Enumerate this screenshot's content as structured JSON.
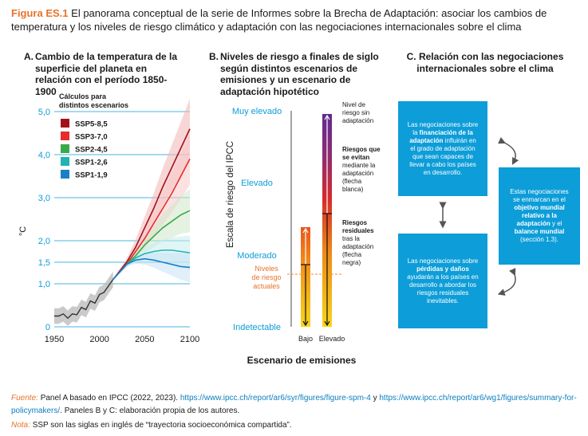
{
  "figure": {
    "label": "Figura ES.1",
    "title": "El panorama conceptual de la serie de Informes sobre la Brecha de Adaptación: asociar los cambios de temperatura y los niveles de riesgo climático y adaptación con las negociaciones internacionales sobre el clima"
  },
  "panel_a": {
    "title_letter": "A.",
    "title": "Cambio de la temperatura de la superficie del planeta en relación con el período 1850-1900",
    "legend_title": "Cálculos para distintos escenarios",
    "ylabel": "°C"
  },
  "panel_b": {
    "title_letter": "B.",
    "title": "Niveles de riesgo a finales de siglo según distintos escenarios de emisiones y un escenario de adaptación hipotético",
    "ylabel": "Escala de riesgo del IPCC",
    "xlabel": "Escenario de emisiones",
    "current_label": "Niveles de riesgo actuales",
    "annot_no_adapt": "Nivel de riesgo sin adaptación",
    "annot_avoided_bold": "Riesgos que se evitan",
    "annot_avoided_rest": "mediante la adaptación (flecha blanca)",
    "annot_residual_bold": "Riesgos residuales",
    "annot_residual_rest": "tras la adaptación (flecha negra)"
  },
  "panel_c": {
    "title_letter": "C.",
    "title": "Relación con las negociaciones internacionales sobre el clima",
    "box1": {
      "pre": "Las negociaciones sobre la ",
      "bold": "financiación de la adaptación",
      "post": " influirán en el grado de adaptación que sean capaces de llevar a cabo los países en desarrollo."
    },
    "box2": {
      "pre": "Estas negociaciones se enmarcan en el ",
      "bold": "objetivo mundial relativo a la adaptación",
      "mid": " y el ",
      "bold2": "balance mundial",
      "post": " (sección 1.3)."
    },
    "box3": {
      "pre": "Las negociaciones sobre ",
      "bold": "pérdidas y daños",
      "post": " ayudarán a los países en desarrollo a abordar los riesgos residuales inevitables."
    }
  },
  "footer": {
    "source_label": "Fuente:",
    "source_text": "Panel A basado en IPCC (2022, 2023).",
    "url1": "https://www.ipcc.ch/report/ar6/syr/figures/figure-spm-4",
    "and": "y",
    "url2": "https://www.ipcc.ch/report/ar6/wg1/figures/summary-for-policymakers/",
    "source_tail": ". Paneles B y C: elaboración propia de los autores.",
    "note_label": "Nota:",
    "note_text": "SSP son las siglas en inglés de “trayectoria socioeconómica compartida”."
  },
  "chart_data": [
    {
      "type": "line",
      "title": "Cambio de la temperatura de la superficie del planeta en relación con el período 1850-1900",
      "ylabel": "°C",
      "xlim": [
        1950,
        2100
      ],
      "ylim": [
        0,
        5
      ],
      "xticks": [
        "1950",
        "2000",
        "2050",
        "2100"
      ],
      "yticks": [
        "0",
        "1,0",
        "1,5",
        "2,0",
        "3,0",
        "4,0",
        "5,0"
      ],
      "ytick_values": [
        0,
        1.0,
        1.5,
        2.0,
        3.0,
        4.0,
        5.0
      ],
      "grid": "horizontal at tick values",
      "legend_position": "top-left",
      "historical": {
        "x": [
          1950,
          1955,
          1960,
          1965,
          1970,
          1975,
          1980,
          1985,
          1990,
          1995,
          2000,
          2005,
          2010,
          2015
        ],
        "y": [
          0.25,
          0.25,
          0.3,
          0.2,
          0.3,
          0.28,
          0.45,
          0.4,
          0.6,
          0.55,
          0.75,
          0.8,
          0.95,
          1.1
        ]
      },
      "series": [
        {
          "name": "SSP5-8,5",
          "color": "#a3121c",
          "x": [
            2015,
            2030,
            2040,
            2050,
            2060,
            2070,
            2080,
            2090,
            2100
          ],
          "y": [
            1.1,
            1.5,
            1.85,
            2.3,
            2.75,
            3.25,
            3.7,
            4.15,
            4.6
          ]
        },
        {
          "name": "SSP3-7,0",
          "color": "#e52d2d",
          "x": [
            2015,
            2030,
            2040,
            2050,
            2060,
            2070,
            2080,
            2090,
            2100
          ],
          "y": [
            1.1,
            1.45,
            1.75,
            2.05,
            2.4,
            2.75,
            3.1,
            3.5,
            3.9
          ]
        },
        {
          "name": "SSP2-4,5",
          "color": "#3aaa48",
          "x": [
            2015,
            2030,
            2040,
            2050,
            2060,
            2070,
            2080,
            2090,
            2100
          ],
          "y": [
            1.1,
            1.45,
            1.65,
            1.9,
            2.1,
            2.3,
            2.45,
            2.6,
            2.7
          ]
        },
        {
          "name": "SSP1-2,6",
          "color": "#22b3b3",
          "x": [
            2015,
            2030,
            2040,
            2050,
            2060,
            2070,
            2080,
            2090,
            2100
          ],
          "y": [
            1.1,
            1.45,
            1.6,
            1.7,
            1.75,
            1.78,
            1.78,
            1.75,
            1.72
          ]
        },
        {
          "name": "SSP1-1,9",
          "color": "#1a7fc7",
          "x": [
            2015,
            2030,
            2040,
            2050,
            2060,
            2070,
            2080,
            2090,
            2100
          ],
          "y": [
            1.1,
            1.45,
            1.55,
            1.58,
            1.55,
            1.5,
            1.45,
            1.4,
            1.38
          ]
        }
      ]
    },
    {
      "type": "bar",
      "title": "Niveles de riesgo a finales de siglo según distintos escenarios de emisiones y un escenario de adaptación hipotético",
      "xlabel": "Escenario de emisiones",
      "ylabel": "Escala de riesgo del IPCC",
      "categories": [
        "Bajo",
        "Elevado"
      ],
      "risk_levels": [
        "Indetectable",
        "Moderado",
        "Elevado",
        "Muy elevado"
      ],
      "current_risk_label": "Niveles de riesgo actuales",
      "bars": [
        {
          "category": "Bajo",
          "without_adaptation": "Moderado+",
          "after_adaptation": "Moderado-"
        },
        {
          "category": "Elevado",
          "without_adaptation": "Muy elevado",
          "after_adaptation": "Elevado-"
        }
      ]
    }
  ]
}
